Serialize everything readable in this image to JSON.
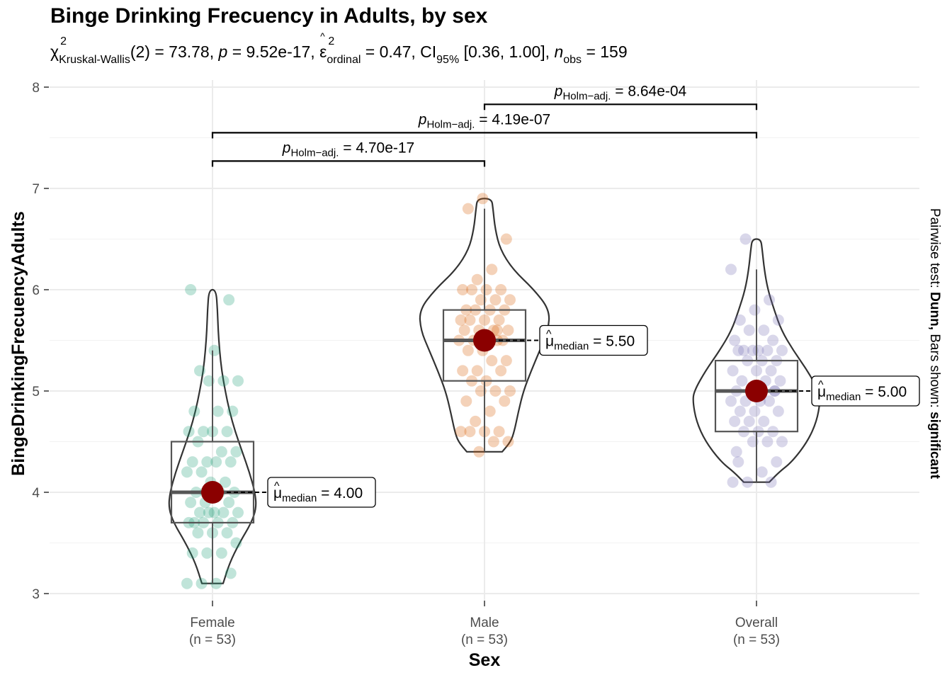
{
  "chart_data": {
    "type": "violin",
    "title": "Binge Drinking Frecuency in Adults, by sex",
    "subtitle": {
      "stat_symbol": "χ",
      "stat_sup": "2",
      "stat_sub": "Kruskal-Wallis",
      "stat_value": "(2) = 73.78,",
      "p_label": "p",
      "p_value": "= 9.52e-17,",
      "effect_symbol": "ε",
      "effect_hat": "^",
      "effect_sup": "2",
      "effect_sub": "ordinal",
      "effect_value": "= 0.47, CI",
      "ci_sub": "95%",
      "ci_value": "[0.36, 1.00],",
      "n_label": "n",
      "n_sub": "obs",
      "n_value": "= 159"
    },
    "xlabel": "Sex",
    "ylabel": "BingeDrinkingFrecuencyAdults",
    "right_caption_parts": [
      {
        "text": "Pairwise test: ",
        "bold": false
      },
      {
        "text": "Dunn,",
        "bold": true
      },
      {
        "text": " Bars shown: ",
        "bold": false
      },
      {
        "text": "significant",
        "bold": true
      }
    ],
    "ylim": [
      3,
      8
    ],
    "yticks": [
      "3",
      "4",
      "5",
      "6",
      "7",
      "8"
    ],
    "grid": true,
    "categories": [
      {
        "name": "Female",
        "n_label": "(n = 53)",
        "color": "#1b9e77",
        "median": 4.0,
        "q1": 3.7,
        "q3": 4.5,
        "whisker_low": 3.1,
        "whisker_high": 5.4,
        "median_label": "= 4.00",
        "violin_min": 3.1,
        "violin_max": 6.0,
        "violin_profile": [
          [
            3.1,
            15
          ],
          [
            3.3,
            24
          ],
          [
            3.5,
            38
          ],
          [
            3.7,
            55
          ],
          [
            3.85,
            62
          ],
          [
            4.0,
            60
          ],
          [
            4.2,
            52
          ],
          [
            4.4,
            42
          ],
          [
            4.6,
            32
          ],
          [
            4.8,
            24
          ],
          [
            5.0,
            18
          ],
          [
            5.2,
            13
          ],
          [
            5.4,
            10
          ],
          [
            5.6,
            8
          ],
          [
            5.8,
            7
          ],
          [
            6.0,
            5
          ]
        ],
        "points": [
          3.1,
          3.1,
          3.1,
          3.2,
          3.4,
          3.4,
          3.4,
          3.5,
          3.6,
          3.6,
          3.6,
          3.7,
          3.7,
          3.7,
          3.7,
          3.7,
          3.8,
          3.8,
          3.8,
          3.8,
          3.8,
          3.9,
          3.9,
          4.0,
          4.0,
          4.0,
          4.0,
          4.1,
          4.1,
          4.2,
          4.2,
          4.3,
          4.3,
          4.3,
          4.3,
          4.4,
          4.4,
          4.5,
          4.6,
          4.6,
          4.6,
          4.6,
          4.8,
          4.8,
          4.8,
          5.1,
          5.1,
          5.1,
          5.2,
          5.4,
          5.9,
          6.0,
          3.9
        ]
      },
      {
        "name": "Male",
        "n_label": "(n = 53)",
        "color": "#d95f02",
        "median": 5.5,
        "q1": 5.1,
        "q3": 5.8,
        "whisker_low": 4.4,
        "whisker_high": 6.8,
        "median_label": "= 5.50",
        "violin_min": 4.4,
        "violin_max": 6.9,
        "violin_profile": [
          [
            4.4,
            25
          ],
          [
            4.5,
            37
          ],
          [
            4.6,
            42
          ],
          [
            4.8,
            48
          ],
          [
            5.0,
            55
          ],
          [
            5.2,
            66
          ],
          [
            5.4,
            78
          ],
          [
            5.6,
            90
          ],
          [
            5.8,
            92
          ],
          [
            6.0,
            70
          ],
          [
            6.2,
            40
          ],
          [
            6.4,
            22
          ],
          [
            6.6,
            15
          ],
          [
            6.8,
            12
          ],
          [
            6.9,
            10
          ]
        ],
        "points": [
          4.4,
          4.5,
          4.5,
          4.6,
          4.6,
          4.6,
          4.6,
          4.7,
          4.8,
          4.9,
          4.9,
          5.0,
          5.0,
          5.0,
          5.1,
          5.1,
          5.2,
          5.2,
          5.2,
          5.3,
          5.3,
          5.4,
          5.4,
          5.5,
          5.5,
          5.5,
          5.5,
          5.5,
          5.6,
          5.6,
          5.6,
          5.6,
          5.7,
          5.7,
          5.7,
          5.7,
          5.8,
          5.8,
          5.8,
          5.8,
          5.9,
          5.9,
          5.9,
          6.0,
          6.0,
          6.0,
          6.0,
          6.1,
          6.2,
          6.5,
          6.8,
          6.9,
          5.6
        ]
      },
      {
        "name": "Overall",
        "n_label": "(n = 53)",
        "color": "#7570b3",
        "median": 5.0,
        "q1": 4.6,
        "q3": 5.3,
        "whisker_low": 4.1,
        "whisker_high": 6.2,
        "median_label": "= 5.00",
        "violin_min": 4.1,
        "violin_max": 6.5,
        "violin_profile": [
          [
            4.1,
            18
          ],
          [
            4.2,
            32
          ],
          [
            4.3,
            50
          ],
          [
            4.5,
            72
          ],
          [
            4.7,
            85
          ],
          [
            4.9,
            90
          ],
          [
            5.0,
            88
          ],
          [
            5.2,
            72
          ],
          [
            5.4,
            52
          ],
          [
            5.6,
            35
          ],
          [
            5.8,
            25
          ],
          [
            6.0,
            16
          ],
          [
            6.2,
            11
          ],
          [
            6.4,
            8
          ],
          [
            6.5,
            6
          ]
        ],
        "points": [
          4.1,
          4.1,
          4.1,
          4.2,
          4.3,
          4.3,
          4.5,
          4.5,
          4.5,
          4.6,
          4.6,
          4.6,
          4.7,
          4.7,
          4.7,
          4.8,
          4.8,
          4.8,
          4.9,
          4.9,
          4.9,
          5.0,
          5.0,
          5.0,
          5.0,
          5.1,
          5.1,
          5.1,
          5.2,
          5.2,
          5.2,
          5.3,
          5.3,
          5.3,
          5.4,
          5.4,
          5.4,
          5.4,
          5.4,
          5.4,
          5.5,
          5.5,
          5.6,
          5.6,
          5.7,
          5.7,
          5.8,
          5.9,
          6.2,
          6.5,
          4.9,
          5.0,
          4.4
        ]
      }
    ],
    "median_label_prefix": "μ",
    "median_label_sub": "median",
    "pairwise": [
      {
        "from": 0,
        "to": 1,
        "y": 7.27,
        "p_label": "p",
        "p_sub": "Holm−adj.",
        "p_value": "= 4.70e-17"
      },
      {
        "from": 0,
        "to": 2,
        "y": 7.55,
        "p_label": "p",
        "p_sub": "Holm−adj.",
        "p_value": "= 4.19e-07"
      },
      {
        "from": 1,
        "to": 2,
        "y": 7.83,
        "p_label": "p",
        "p_sub": "Holm−adj.",
        "p_value": "= 8.64e-04"
      }
    ],
    "colors": {
      "median_point": "#8b0000",
      "violin_stroke": "#333333",
      "grid": "#ebebeb"
    }
  }
}
